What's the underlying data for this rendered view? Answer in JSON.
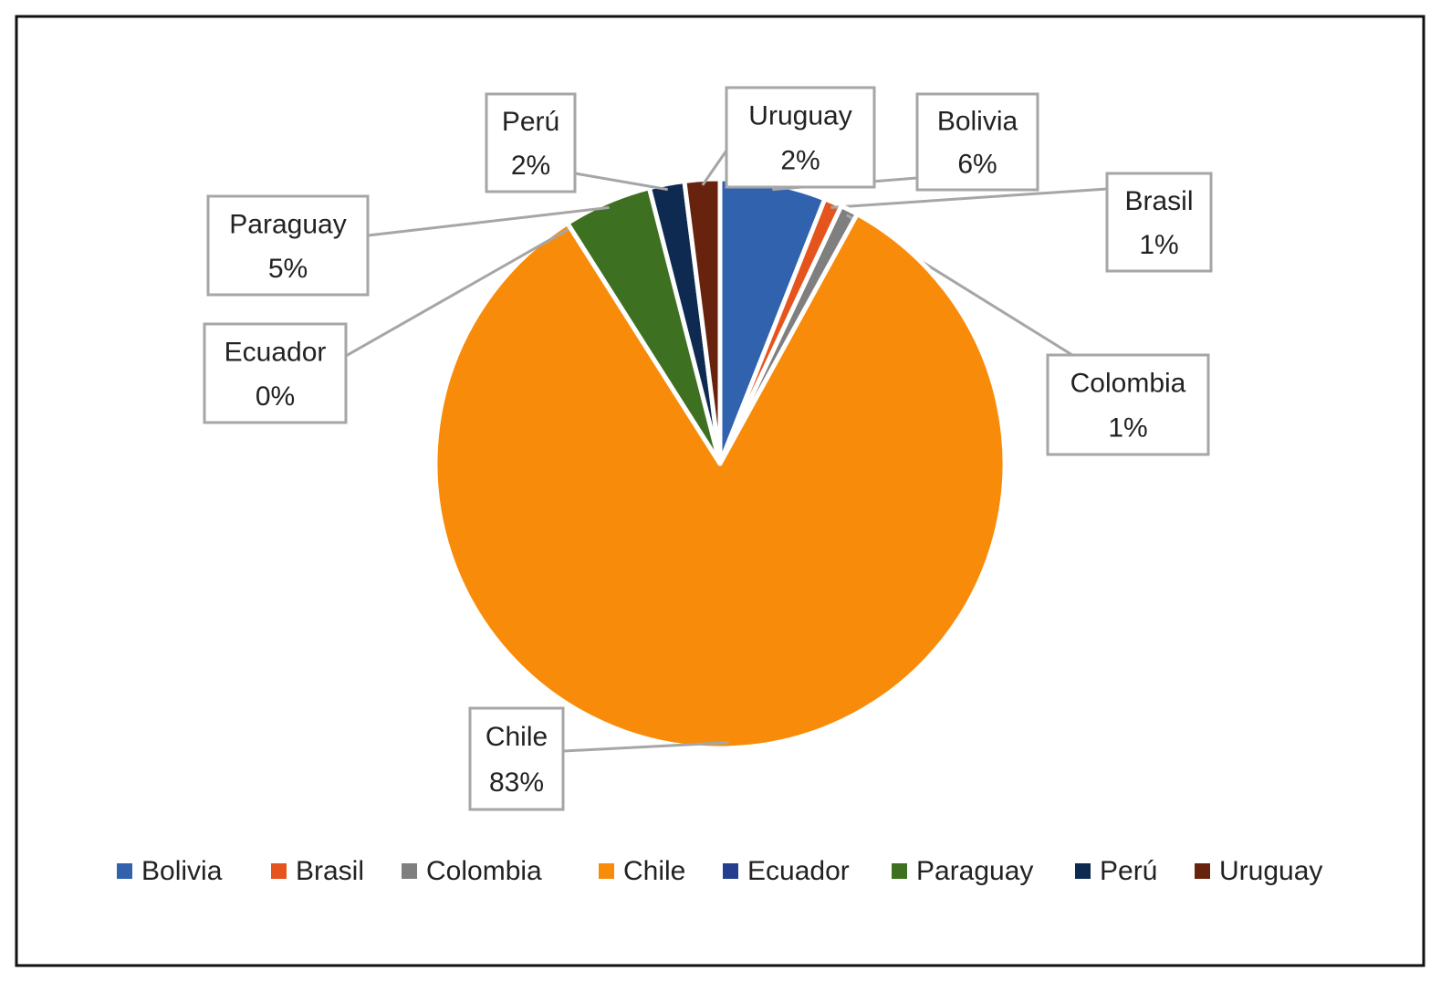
{
  "chart_data": {
    "type": "pie",
    "categories": [
      "Bolivia",
      "Brasil",
      "Colombia",
      "Chile",
      "Ecuador",
      "Paraguay",
      "Perú",
      "Uruguay"
    ],
    "values": [
      6,
      1,
      1,
      83,
      0,
      5,
      2,
      2
    ],
    "value_labels": [
      "6%",
      "1%",
      "1%",
      "83%",
      "0%",
      "5%",
      "2%",
      "2%"
    ],
    "colors": [
      "#3162ad",
      "#e5541c",
      "#7f7f7f",
      "#f88c0a",
      "#243f8f",
      "#3e7022",
      "#0e2a50",
      "#68230f"
    ],
    "legend": "bottom"
  }
}
